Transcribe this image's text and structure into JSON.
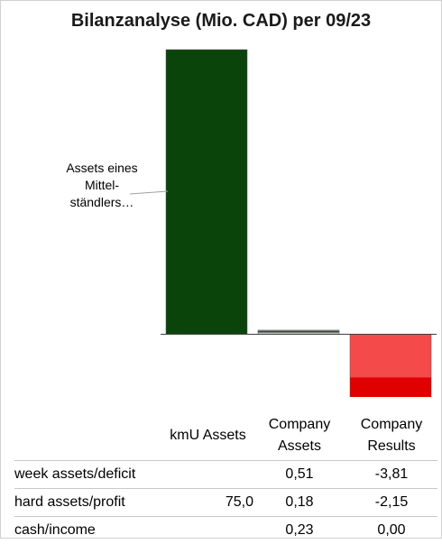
{
  "chart_data": {
    "type": "bar",
    "title": "Bilanzanalyse (Mio. CAD) per 09/23",
    "categories": [
      "kmU Assets",
      "Company Assets",
      "Company Results"
    ],
    "series": [
      {
        "name": "week assets/deficit",
        "values": [
          null,
          0.51,
          -3.81
        ],
        "color": "#c8c8c8"
      },
      {
        "name": "hard assets/profit",
        "values": [
          75.0,
          0.18,
          -2.15
        ],
        "color": "#0b440b"
      },
      {
        "name": "cash/income",
        "values": [
          null,
          0.23,
          0.0
        ],
        "color": "#8a8a8a"
      }
    ],
    "stacked": true,
    "result_colors": {
      "deficit": "#f44a4a",
      "profit": "#e00000"
    },
    "annotation": "Assets eines Mittel-ständlers…",
    "table": {
      "headers": [
        "",
        "kmU Assets",
        "Company Assets",
        "Company Results"
      ],
      "rows": [
        {
          "label": "week assets/deficit",
          "cells": [
            "",
            "0,51",
            "-3,81"
          ]
        },
        {
          "label": "hard assets/profit",
          "cells": [
            "75,0",
            "0,18",
            "-2,15"
          ]
        },
        {
          "label": "cash/income",
          "cells": [
            "",
            "0,23",
            "0,00"
          ]
        }
      ]
    },
    "legend": "table",
    "grid": false
  }
}
